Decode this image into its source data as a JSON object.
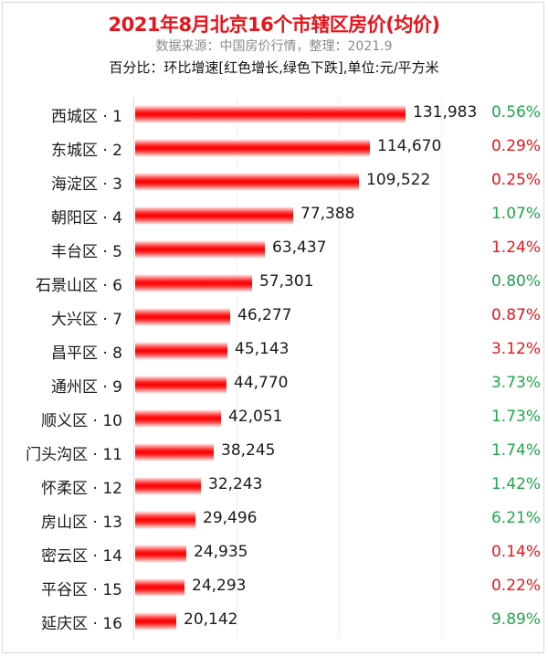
{
  "header": {
    "title": "2021年8月北京16个市辖区房价(均价)",
    "subtitle": "数据来源：中国房价行情，整理：2021.9",
    "note": "百分比：环比增速[红色增长,绿色下跌],单位:元/平方米"
  },
  "colors": {
    "title": "#e8141b",
    "bar": "#f50000",
    "increase": "#e8141b",
    "decrease": "#1fa64a"
  },
  "rows": [
    {
      "label": "西城区 · 1",
      "value": "131,983",
      "pct": "0.56%",
      "dir": "down"
    },
    {
      "label": "东城区 · 2",
      "value": "114,670",
      "pct": "0.29%",
      "dir": "up"
    },
    {
      "label": "海淀区 · 3",
      "value": "109,522",
      "pct": "0.25%",
      "dir": "up"
    },
    {
      "label": "朝阳区 · 4",
      "value": "77,388",
      "pct": "1.07%",
      "dir": "down"
    },
    {
      "label": "丰台区 · 5",
      "value": "63,437",
      "pct": "1.24%",
      "dir": "up"
    },
    {
      "label": "石景山区 · 6",
      "value": "57,301",
      "pct": "0.80%",
      "dir": "down"
    },
    {
      "label": "大兴区 · 7",
      "value": "46,277",
      "pct": "0.87%",
      "dir": "up"
    },
    {
      "label": "昌平区 · 8",
      "value": "45,143",
      "pct": "3.12%",
      "dir": "up"
    },
    {
      "label": "通州区 · 9",
      "value": "44,770",
      "pct": "3.73%",
      "dir": "down"
    },
    {
      "label": "顺义区 · 10",
      "value": "42,051",
      "pct": "1.73%",
      "dir": "down"
    },
    {
      "label": "门头沟区 · 11",
      "value": "38,245",
      "pct": "1.74%",
      "dir": "down"
    },
    {
      "label": "怀柔区 · 12",
      "value": "32,243",
      "pct": "1.42%",
      "dir": "down"
    },
    {
      "label": "房山区 · 13",
      "value": "29,496",
      "pct": "6.21%",
      "dir": "down"
    },
    {
      "label": "密云区 · 14",
      "value": "24,935",
      "pct": "0.14%",
      "dir": "up"
    },
    {
      "label": "平谷区 · 15",
      "value": "24,293",
      "pct": "0.22%",
      "dir": "up"
    },
    {
      "label": "延庆区 · 16",
      "value": "20,142",
      "pct": "9.89%",
      "dir": "down"
    }
  ],
  "chart_data": {
    "type": "bar",
    "orientation": "horizontal",
    "title": "2021年8月北京16个市辖区房价(均价)",
    "subtitle": "数据来源：中国房价行情，整理：2021.9",
    "annotation": "百分比：环比增速[红色增长,绿色下跌],单位:元/平方米",
    "xlabel": "",
    "ylabel": "",
    "unit": "元/平方米",
    "grid": true,
    "legend": "none",
    "categories": [
      "西城区 · 1",
      "东城区 · 2",
      "海淀区 · 3",
      "朝阳区 · 4",
      "丰台区 · 5",
      "石景山区 · 6",
      "大兴区 · 7",
      "昌平区 · 8",
      "通州区 · 9",
      "顺义区 · 10",
      "门头沟区 · 11",
      "怀柔区 · 12",
      "房山区 · 13",
      "密云区 · 14",
      "平谷区 · 15",
      "延庆区 · 16"
    ],
    "series": [
      {
        "name": "均价",
        "values": [
          131983,
          114670,
          109522,
          77388,
          63437,
          57301,
          46277,
          45143,
          44770,
          42051,
          38245,
          32243,
          29496,
          24935,
          24293,
          20142
        ]
      },
      {
        "name": "环比增速(%)",
        "values": [
          -0.56,
          0.29,
          0.25,
          -1.07,
          1.24,
          -0.8,
          0.87,
          3.12,
          -3.73,
          -1.73,
          -1.74,
          -1.42,
          -6.21,
          0.14,
          0.22,
          -9.89
        ]
      }
    ],
    "xlim": [
      0,
      200000
    ]
  }
}
